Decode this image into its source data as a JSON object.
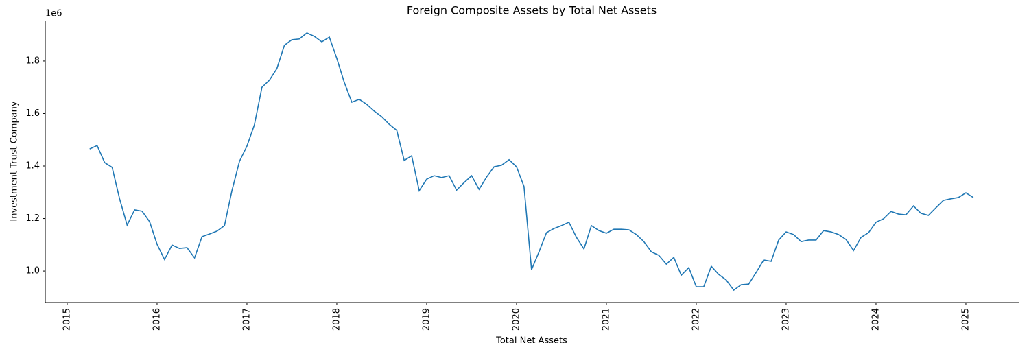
{
  "chart_data": {
    "type": "line",
    "title": "Foreign Composite Assets by Total Net Assets",
    "x_label": "Total Net Assets",
    "y_label": "Investment Trust Company",
    "y_offset_label": "1e6",
    "color": "#1f77b4",
    "x": [
      2015.25,
      2015.333,
      2015.417,
      2015.5,
      2015.583,
      2015.667,
      2015.75,
      2015.833,
      2015.917,
      2016.0,
      2016.083,
      2016.167,
      2016.25,
      2016.333,
      2016.417,
      2016.5,
      2016.583,
      2016.667,
      2016.75,
      2016.833,
      2016.917,
      2017.0,
      2017.083,
      2017.167,
      2017.25,
      2017.333,
      2017.417,
      2017.5,
      2017.583,
      2017.667,
      2017.75,
      2017.833,
      2017.917,
      2018.0,
      2018.083,
      2018.167,
      2018.25,
      2018.333,
      2018.417,
      2018.5,
      2018.583,
      2018.667,
      2018.75,
      2018.833,
      2018.917,
      2019.0,
      2019.083,
      2019.167,
      2019.25,
      2019.333,
      2019.417,
      2019.5,
      2019.583,
      2019.667,
      2019.75,
      2019.833,
      2019.917,
      2020.0,
      2020.083,
      2020.167,
      2020.25,
      2020.333,
      2020.417,
      2020.5,
      2020.583,
      2020.667,
      2020.75,
      2020.833,
      2020.917,
      2021.0,
      2021.083,
      2021.167,
      2021.25,
      2021.333,
      2021.417,
      2021.5,
      2021.583,
      2021.667,
      2021.75,
      2021.833,
      2021.917,
      2022.0,
      2022.083,
      2022.167,
      2022.25,
      2022.333,
      2022.417,
      2022.5,
      2022.583,
      2022.667,
      2022.75,
      2022.833,
      2022.917,
      2023.0,
      2023.083,
      2023.167,
      2023.25,
      2023.333,
      2023.417,
      2023.5,
      2023.583,
      2023.667,
      2023.75,
      2023.833,
      2023.917,
      2024.0,
      2024.083,
      2024.167,
      2024.25,
      2024.333,
      2024.417,
      2024.5,
      2024.583,
      2024.667,
      2024.75,
      2024.833,
      2024.917,
      2025.0,
      2025.083
    ],
    "values": [
      1.465,
      1.478,
      1.413,
      1.395,
      1.275,
      1.175,
      1.233,
      1.228,
      1.188,
      1.102,
      1.044,
      1.099,
      1.086,
      1.089,
      1.05,
      1.131,
      1.141,
      1.152,
      1.173,
      1.306,
      1.418,
      1.476,
      1.557,
      1.7,
      1.727,
      1.771,
      1.86,
      1.881,
      1.884,
      1.907,
      1.894,
      1.873,
      1.891,
      1.81,
      1.719,
      1.643,
      1.654,
      1.635,
      1.609,
      1.588,
      1.559,
      1.536,
      1.421,
      1.439,
      1.306,
      1.35,
      1.363,
      1.356,
      1.363,
      1.308,
      1.337,
      1.363,
      1.311,
      1.358,
      1.397,
      1.403,
      1.424,
      1.397,
      1.322,
      1.005,
      1.073,
      1.146,
      1.162,
      1.173,
      1.186,
      1.128,
      1.084,
      1.173,
      1.154,
      1.144,
      1.159,
      1.159,
      1.157,
      1.139,
      1.112,
      1.073,
      1.06,
      1.026,
      1.052,
      0.984,
      1.013,
      0.94,
      0.94,
      1.018,
      0.987,
      0.966,
      0.927,
      0.948,
      0.95,
      0.995,
      1.042,
      1.037,
      1.118,
      1.149,
      1.139,
      1.112,
      1.118,
      1.118,
      1.154,
      1.149,
      1.139,
      1.12,
      1.078,
      1.128,
      1.146,
      1.186,
      1.199,
      1.227,
      1.217,
      1.214,
      1.248,
      1.22,
      1.212,
      1.241,
      1.269,
      1.275,
      1.28,
      1.298,
      1.28
    ],
    "xlim": [
      2014.756,
      2025.588
    ],
    "xticks": [
      2015,
      2016,
      2017,
      2018,
      2019,
      2020,
      2021,
      2022,
      2023,
      2024,
      2025
    ],
    "ylim": [
      0.88,
      1.954
    ],
    "yticks": [
      {
        "value": 1,
        "label": "1.0"
      },
      1.2,
      1.4,
      1.6,
      1.8
    ]
  }
}
